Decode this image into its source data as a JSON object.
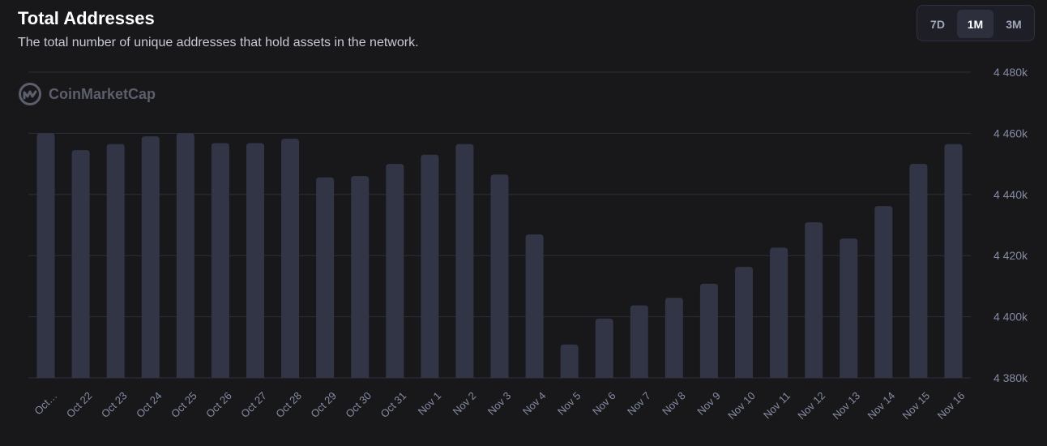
{
  "header": {
    "title": "Total Addresses",
    "subtitle": "The total number of unique addresses that hold assets in the network."
  },
  "range_selector": {
    "options": [
      "7D",
      "1M",
      "3M"
    ],
    "selected": "1M"
  },
  "watermark": {
    "text": "CoinMarketCap",
    "icon": "coinmarketcap-logo-icon"
  },
  "colors": {
    "background": "#18181b",
    "bar": "#323546",
    "grid": "#2c2e3b",
    "tick_text": "#858ca2"
  },
  "chart_data": {
    "type": "bar",
    "title": "Total Addresses",
    "xlabel": "",
    "ylabel": "",
    "ylim": [
      4380000,
      4480000
    ],
    "y_ticks": [
      4380000,
      4400000,
      4420000,
      4440000,
      4460000,
      4480000
    ],
    "y_tick_labels": [
      "4 380k",
      "4 400k",
      "4 420k",
      "4 440k",
      "4 460k",
      "4 480k"
    ],
    "y_axis_position": "right",
    "grid": true,
    "categories": [
      "Oct…",
      "Oct 22",
      "Oct 23",
      "Oct 24",
      "Oct 25",
      "Oct 26",
      "Oct 27",
      "Oct 28",
      "Oct 29",
      "Oct 30",
      "Oct 31",
      "Nov 1",
      "Nov 2",
      "Nov 3",
      "Nov 4",
      "Nov 5",
      "Nov 6",
      "Nov 7",
      "Nov 8",
      "Nov 9",
      "Nov 10",
      "Nov 11",
      "Nov 12",
      "Nov 13",
      "Nov 14",
      "Nov 15",
      "Nov 16"
    ],
    "values": [
      4460000,
      4454500,
      4456500,
      4459000,
      4460000,
      4456800,
      4456800,
      4458200,
      4445600,
      4446000,
      4450000,
      4453000,
      4456500,
      4446500,
      4426900,
      4390900,
      4399400,
      4403700,
      4406200,
      4410800,
      4416300,
      4422600,
      4430900,
      4425600,
      4436200,
      4450000,
      4456500
    ]
  }
}
